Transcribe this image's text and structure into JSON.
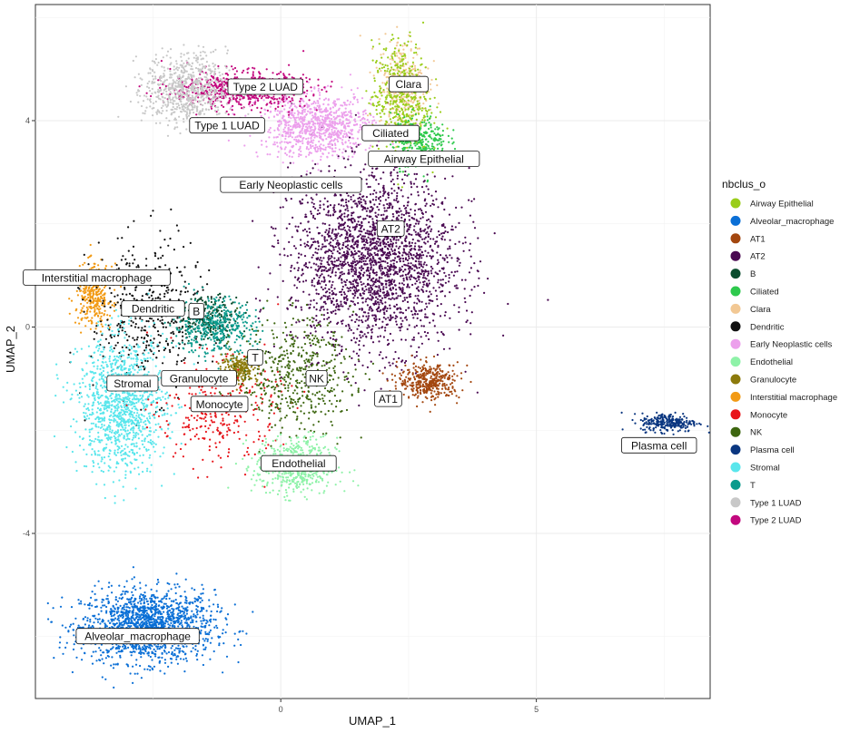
{
  "chart_data": {
    "type": "scatter",
    "title": "",
    "xlabel": "UMAP_1",
    "ylabel": "UMAP_2",
    "xlim": [
      -4.8,
      8.4
    ],
    "ylim": [
      -7.2,
      6.25
    ],
    "x_ticks": [
      0,
      5
    ],
    "y_ticks": [
      -4,
      0,
      4
    ],
    "grid": true,
    "legend": {
      "title": "nbclus_o",
      "placement": "right",
      "entries": [
        {
          "name": "Airway Epithelial",
          "color": "#9acd1a"
        },
        {
          "name": "Alveolar_macrophage",
          "color": "#0a6fd6"
        },
        {
          "name": "AT1",
          "color": "#a3470f"
        },
        {
          "name": "AT2",
          "color": "#4a0a52"
        },
        {
          "name": "B",
          "color": "#0a4d2e"
        },
        {
          "name": "Ciliated",
          "color": "#2ec94d"
        },
        {
          "name": "Clara",
          "color": "#f2c894"
        },
        {
          "name": "Dendritic",
          "color": "#111111"
        },
        {
          "name": "Early Neoplastic cells",
          "color": "#eca0ec"
        },
        {
          "name": "Endothelial",
          "color": "#8ef2a8"
        },
        {
          "name": "Granulocyte",
          "color": "#8c7a0c"
        },
        {
          "name": "Interstitial macrophage",
          "color": "#f29a14"
        },
        {
          "name": "Monocyte",
          "color": "#e8141a"
        },
        {
          "name": "NK",
          "color": "#3d6610"
        },
        {
          "name": "Plasma cell",
          "color": "#0a3680"
        },
        {
          "name": "Stromal",
          "color": "#5ae6ec"
        },
        {
          "name": "T",
          "color": "#0a9a8c"
        },
        {
          "name": "Type 1 LUAD",
          "color": "#c8c8c8"
        },
        {
          "name": "Type 2 LUAD",
          "color": "#c2087e"
        }
      ]
    },
    "clusters": [
      {
        "name": "Alveolar_macrophage",
        "label": "Alveolar_macrophage",
        "label_xy": [
          -2.8,
          -6.0
        ],
        "center": [
          -2.6,
          -5.8
        ],
        "spread": [
          1.3,
          0.7
        ],
        "color": "#0a6fd6",
        "n": 1600
      },
      {
        "name": "Plasma cell",
        "label": "Plasma cell",
        "label_xy": [
          7.4,
          -2.3
        ],
        "center": [
          7.6,
          -1.85
        ],
        "spread": [
          0.55,
          0.18
        ],
        "color": "#0a3680",
        "n": 260
      },
      {
        "name": "AT2",
        "label": "AT2",
        "label_xy": [
          2.15,
          1.9
        ],
        "center": [
          1.8,
          1.3
        ],
        "spread": [
          1.6,
          1.7
        ],
        "color": "#4a0a52",
        "n": 2400
      },
      {
        "name": "AT1",
        "label": "AT1",
        "label_xy": [
          2.1,
          -1.4
        ],
        "center": [
          2.9,
          -1.05
        ],
        "spread": [
          0.6,
          0.35
        ],
        "color": "#a3470f",
        "n": 380
      },
      {
        "name": "Early Neoplastic cells",
        "label": "Early Neoplastic cells",
        "label_xy": [
          0.2,
          2.75
        ],
        "center": [
          0.7,
          3.9
        ],
        "spread": [
          1.1,
          0.6
        ],
        "color": "#eca0ec",
        "n": 900
      },
      {
        "name": "Type 2 LUAD",
        "label": "Type 2 LUAD",
        "label_xy": [
          -0.3,
          4.65
        ],
        "center": [
          -0.8,
          4.6
        ],
        "spread": [
          1.3,
          0.35
        ],
        "color": "#c2087e",
        "n": 650
      },
      {
        "name": "Type 1 LUAD",
        "label": "Type 1 LUAD",
        "label_xy": [
          -1.05,
          3.9
        ],
        "center": [
          -1.85,
          4.6
        ],
        "spread": [
          0.8,
          0.7
        ],
        "color": "#c8c8c8",
        "n": 700
      },
      {
        "name": "Clara",
        "label": "Clara",
        "label_xy": [
          2.5,
          4.7
        ],
        "center": [
          2.4,
          4.7
        ],
        "spread": [
          0.5,
          0.9
        ],
        "color": "#f2c894",
        "n": 350
      },
      {
        "name": "Airway Epithelial",
        "label": "Airway Epithelial",
        "label_xy": [
          2.8,
          3.25
        ],
        "center": [
          2.35,
          4.4
        ],
        "spread": [
          0.55,
          1.1
        ],
        "color": "#9acd1a",
        "n": 500
      },
      {
        "name": "Ciliated",
        "label": "Ciliated",
        "label_xy": [
          2.15,
          3.75
        ],
        "center": [
          2.7,
          3.6
        ],
        "spread": [
          0.55,
          0.5
        ],
        "color": "#2ec94d",
        "n": 300
      },
      {
        "name": "Interstitial macrophage",
        "label": "Interstitial macrophage",
        "label_xy": [
          -3.6,
          0.95
        ],
        "center": [
          -3.65,
          0.6
        ],
        "spread": [
          0.35,
          0.6
        ],
        "color": "#f29a14",
        "n": 320
      },
      {
        "name": "Dendritic",
        "label": "Dendritic",
        "label_xy": [
          -2.5,
          0.35
        ],
        "center": [
          -2.6,
          0.2
        ],
        "spread": [
          1.1,
          1.5
        ],
        "color": "#111111",
        "n": 450
      },
      {
        "name": "B",
        "label": "B",
        "label_xy": [
          -1.65,
          0.3
        ],
        "center": [
          -1.4,
          0.2
        ],
        "spread": [
          0.6,
          0.4
        ],
        "color": "#0a4d2e",
        "n": 220
      },
      {
        "name": "T",
        "label": "T",
        "label_xy": [
          -0.5,
          -0.6
        ],
        "center": [
          -1.3,
          0.0
        ],
        "spread": [
          0.8,
          0.55
        ],
        "color": "#0a9a8c",
        "n": 420
      },
      {
        "name": "Granulocyte",
        "label": "Granulocyte",
        "label_xy": [
          -1.6,
          -1.0
        ],
        "center": [
          -0.8,
          -0.8
        ],
        "spread": [
          0.35,
          0.25
        ],
        "color": "#8c7a0c",
        "n": 220
      },
      {
        "name": "Stromal",
        "label": "Stromal",
        "label_xy": [
          -2.9,
          -1.1
        ],
        "center": [
          -3.1,
          -1.5
        ],
        "spread": [
          0.85,
          1.3
        ],
        "color": "#5ae6ec",
        "n": 1200
      },
      {
        "name": "Monocyte",
        "label": "Monocyte",
        "label_xy": [
          -1.2,
          -1.5
        ],
        "center": [
          -1.2,
          -1.7
        ],
        "spread": [
          1.2,
          1.0
        ],
        "color": "#e8141a",
        "n": 280
      },
      {
        "name": "NK",
        "label": "NK",
        "label_xy": [
          0.7,
          -1.0
        ],
        "center": [
          0.3,
          -0.9
        ],
        "spread": [
          1.1,
          1.1
        ],
        "color": "#3d6610",
        "n": 500
      },
      {
        "name": "Endothelial",
        "label": "Endothelial",
        "label_xy": [
          0.35,
          -2.65
        ],
        "center": [
          0.3,
          -2.7
        ],
        "spread": [
          0.8,
          0.55
        ],
        "color": "#8ef2a8",
        "n": 550
      }
    ]
  }
}
